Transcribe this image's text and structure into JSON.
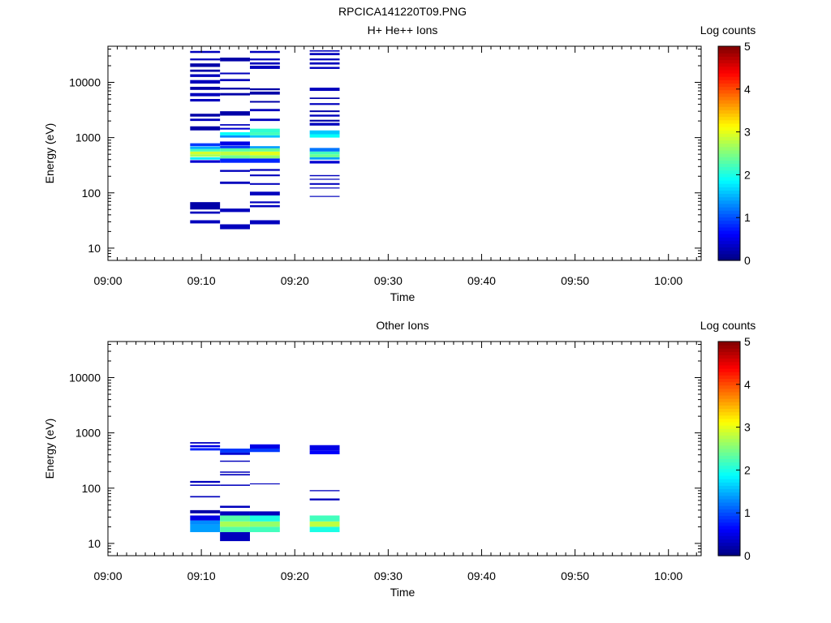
{
  "figure_title": "RPCICA141220T09.PNG",
  "colors": {
    "axis": "#000000",
    "background": "#ffffff",
    "colormap": [
      "#00007f",
      "#0000ff",
      "#007fff",
      "#00ffff",
      "#7fff7f",
      "#ffff00",
      "#ff7f00",
      "#ff0000",
      "#7f0000"
    ]
  },
  "chart_data": [
    {
      "type": "heatmap",
      "title": "H+ He++ Ions",
      "xlabel": "Time",
      "ylabel": "Energy (eV)",
      "x_ticks": [
        "09:00",
        "09:10",
        "09:20",
        "09:30",
        "09:40",
        "09:50",
        "10:00"
      ],
      "y_ticks": [
        "10",
        "100",
        "1000",
        "10000"
      ],
      "y_scale": "log",
      "ylim": [
        6,
        45000
      ],
      "xlim_minutes": [
        0,
        63.5
      ],
      "colorbar": {
        "label": "Log counts",
        "ticks": [
          "0",
          "1",
          "2",
          "3",
          "4",
          "5"
        ],
        "range": [
          0,
          5
        ]
      },
      "columns": [
        {
          "t0": 8.8,
          "t1": 12.0,
          "bins": [
            [
              28,
              32,
              0.3
            ],
            [
              42,
              46,
              0.3
            ],
            [
              50,
              68,
              0.2
            ],
            [
              350,
              390,
              0.4
            ],
            [
              400,
              440,
              1.8
            ],
            [
              450,
              500,
              2.7
            ],
            [
              500,
              560,
              2.9
            ],
            [
              560,
              620,
              2.2
            ],
            [
              620,
              690,
              1.5
            ],
            [
              700,
              790,
              0.9
            ],
            [
              1350,
              1600,
              0.2
            ],
            [
              2000,
              2200,
              0.3
            ],
            [
              2400,
              2700,
              0.2
            ],
            [
              4500,
              5000,
              0.3
            ],
            [
              5600,
              6400,
              0.3
            ],
            [
              7300,
              8300,
              0.2
            ],
            [
              9500,
              11000,
              0.3
            ],
            [
              12500,
              14000,
              0.3
            ],
            [
              15500,
              17000,
              0.2
            ],
            [
              19000,
              22000,
              0.2
            ],
            [
              25000,
              27000,
              0.3
            ],
            [
              34000,
              37000,
              0.3
            ]
          ]
        },
        {
          "t0": 12.0,
          "t1": 15.2,
          "bins": [
            [
              22,
              27,
              0.3
            ],
            [
              45,
              52,
              0.3
            ],
            [
              145,
              160,
              0.3
            ],
            [
              240,
              260,
              0.3
            ],
            [
              350,
              420,
              0.8
            ],
            [
              420,
              480,
              2.4
            ],
            [
              480,
              560,
              2.8
            ],
            [
              560,
              640,
              2.3
            ],
            [
              640,
              710,
              0.9
            ],
            [
              720,
              850,
              0.5
            ],
            [
              1000,
              1100,
              1.3
            ],
            [
              1100,
              1250,
              1.9
            ],
            [
              1400,
              1500,
              0.4
            ],
            [
              1650,
              1750,
              0.3
            ],
            [
              2500,
              3000,
              0.2
            ],
            [
              5800,
              6400,
              0.2
            ],
            [
              7400,
              8000,
              0.2
            ],
            [
              10500,
              11500,
              0.3
            ],
            [
              14000,
              15000,
              0.3
            ],
            [
              24000,
              28000,
              0.2
            ]
          ]
        },
        {
          "t0": 15.2,
          "t1": 18.4,
          "bins": [
            [
              27,
              32,
              0.3
            ],
            [
              55,
              60,
              0.3
            ],
            [
              65,
              70,
              0.3
            ],
            [
              90,
              105,
              0.3
            ],
            [
              140,
              150,
              0.3
            ],
            [
              200,
              215,
              0.3
            ],
            [
              250,
              270,
              0.3
            ],
            [
              350,
              420,
              0.8
            ],
            [
              420,
              480,
              2.6
            ],
            [
              480,
              560,
              3.0
            ],
            [
              560,
              640,
              2.4
            ],
            [
              640,
              700,
              1.4
            ],
            [
              1000,
              1100,
              1.6
            ],
            [
              1100,
              1250,
              2.2
            ],
            [
              1250,
              1450,
              2.1
            ],
            [
              2000,
              2200,
              0.3
            ],
            [
              3000,
              3300,
              0.3
            ],
            [
              4300,
              4600,
              0.2
            ],
            [
              6000,
              6800,
              0.2
            ],
            [
              7200,
              7800,
              0.2
            ],
            [
              17500,
              20000,
              0.3
            ],
            [
              21000,
              23000,
              0.3
            ],
            [
              25000,
              27000,
              0.3
            ],
            [
              34000,
              37000,
              0.3
            ]
          ]
        },
        {
          "t0": 21.6,
          "t1": 24.8,
          "bins": [
            [
              85,
              88,
              0.3
            ],
            [
              120,
              125,
              0.3
            ],
            [
              140,
              150,
              0.3
            ],
            [
              175,
              180,
              0.3
            ],
            [
              200,
              210,
              0.3
            ],
            [
              340,
              380,
              0.4
            ],
            [
              400,
              440,
              1.4
            ],
            [
              440,
              500,
              2.4
            ],
            [
              500,
              560,
              2.2
            ],
            [
              560,
              650,
              1.2
            ],
            [
              1000,
              1150,
              1.9
            ],
            [
              1150,
              1350,
              1.6
            ],
            [
              1650,
              1850,
              0.3
            ],
            [
              1950,
              2100,
              0.2
            ],
            [
              2400,
              2600,
              0.3
            ],
            [
              2900,
              3100,
              0.2
            ],
            [
              3900,
              4200,
              0.3
            ],
            [
              5000,
              5300,
              0.2
            ],
            [
              7000,
              8000,
              0.3
            ],
            [
              17500,
              19000,
              0.3
            ],
            [
              21000,
              23000,
              0.3
            ],
            [
              25000,
              27000,
              0.3
            ],
            [
              31000,
              34000,
              0.3
            ],
            [
              36000,
              38000,
              0.3
            ]
          ]
        }
      ]
    },
    {
      "type": "heatmap",
      "title": "Other Ions",
      "xlabel": "Time",
      "ylabel": "Energy (eV)",
      "x_ticks": [
        "09:00",
        "09:10",
        "09:20",
        "09:30",
        "09:40",
        "09:50",
        "10:00"
      ],
      "y_ticks": [
        "10",
        "100",
        "1000",
        "10000"
      ],
      "y_scale": "log",
      "ylim": [
        6,
        45000
      ],
      "xlim_minutes": [
        0,
        63.5
      ],
      "colorbar": {
        "label": "Log counts",
        "ticks": [
          "0",
          "1",
          "2",
          "3",
          "4",
          "5"
        ],
        "range": [
          0,
          5
        ]
      },
      "columns": [
        {
          "t0": 8.8,
          "t1": 12.0,
          "bins": [
            [
              16,
              22,
              1.4
            ],
            [
              22,
              26,
              1.3
            ],
            [
              26,
              32,
              0.5
            ],
            [
              35,
              40,
              0.2
            ],
            [
              68,
              72,
              0.3
            ],
            [
              110,
              116,
              0.3
            ],
            [
              125,
              135,
              0.3
            ],
            [
              480,
              530,
              0.8
            ],
            [
              550,
              600,
              0.5
            ],
            [
              640,
              680,
              0.3
            ]
          ]
        },
        {
          "t0": 12.0,
          "t1": 15.2,
          "bins": [
            [
              11,
              16,
              0.3
            ],
            [
              16,
              20,
              2.3
            ],
            [
              20,
              25,
              2.7
            ],
            [
              25,
              32,
              2.3
            ],
            [
              32,
              38,
              0.3
            ],
            [
              44,
              48,
              0.3
            ],
            [
              110,
              116,
              0.3
            ],
            [
              170,
              180,
              0.3
            ],
            [
              190,
              200,
              0.3
            ],
            [
              300,
              315,
              0.3
            ],
            [
              400,
              440,
              0.4
            ],
            [
              440,
              520,
              0.9
            ]
          ]
        },
        {
          "t0": 15.2,
          "t1": 18.4,
          "bins": [
            [
              16,
              20,
              2.2
            ],
            [
              20,
              25,
              2.6
            ],
            [
              25,
              32,
              2.0
            ],
            [
              32,
              38,
              0.3
            ],
            [
              118,
              122,
              0.3
            ],
            [
              450,
              520,
              0.9
            ],
            [
              520,
              620,
              0.5
            ]
          ]
        },
        {
          "t0": 21.6,
          "t1": 24.8,
          "bins": [
            [
              16,
              20,
              2.0
            ],
            [
              20,
              25,
              2.8
            ],
            [
              25,
              32,
              2.2
            ],
            [
              60,
              65,
              0.3
            ],
            [
              88,
              92,
              0.3
            ],
            [
              410,
              480,
              0.6
            ],
            [
              480,
              600,
              0.5
            ]
          ]
        }
      ]
    }
  ]
}
